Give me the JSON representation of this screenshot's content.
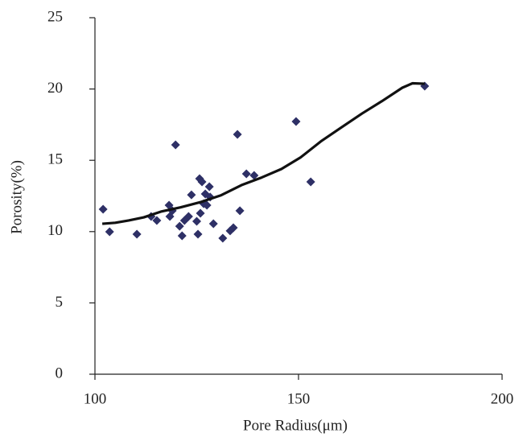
{
  "chart_data": {
    "type": "scatter",
    "x_label": "Pore Radius(μm)",
    "y_label": "Porosity(%)",
    "xlim": [
      100,
      200
    ],
    "xticks": [
      100,
      150,
      200
    ],
    "ylim": [
      0,
      25
    ],
    "yticks": [
      0,
      5,
      10,
      15,
      20,
      25
    ],
    "grid": false,
    "series": [
      {
        "type": "scatter",
        "color": "#2e3066",
        "x": [
          102.0,
          103.6,
          110.3,
          113.8,
          115.2,
          118.2,
          118.4,
          119.0,
          119.8,
          120.8,
          121.4,
          122.0,
          123.0,
          123.7,
          125.0,
          125.3,
          125.7,
          125.9,
          126.3,
          126.7,
          127.1,
          127.5,
          128.1,
          128.3,
          129.1,
          131.4,
          133.2,
          134.0,
          135.0,
          135.6,
          137.2,
          139.1,
          149.4,
          153.0,
          181.0
        ],
        "values": [
          11.57,
          9.99,
          9.82,
          11.06,
          10.78,
          11.85,
          11.06,
          11.46,
          16.08,
          10.38,
          9.71,
          10.78,
          11.06,
          12.58,
          10.72,
          9.82,
          13.71,
          11.29,
          13.49,
          11.96,
          12.64,
          11.85,
          13.15,
          12.42,
          10.55,
          9.54,
          10.05,
          10.27,
          16.82,
          11.46,
          14.05,
          13.94,
          17.72,
          13.49,
          20.2
        ]
      },
      {
        "type": "line",
        "color": "#111111",
        "x": [
          101.8,
          105,
          108.3,
          112,
          116.2,
          121,
          126.1,
          131,
          136,
          141,
          145.8,
          150.5,
          155.7,
          160.5,
          165.6,
          170.5,
          175.5,
          178,
          181
        ],
        "values": [
          10.55,
          10.62,
          10.78,
          11.0,
          11.4,
          11.7,
          12.08,
          12.55,
          13.26,
          13.8,
          14.39,
          15.2,
          16.37,
          17.3,
          18.28,
          19.15,
          20.09,
          20.4,
          20.37
        ]
      }
    ]
  }
}
